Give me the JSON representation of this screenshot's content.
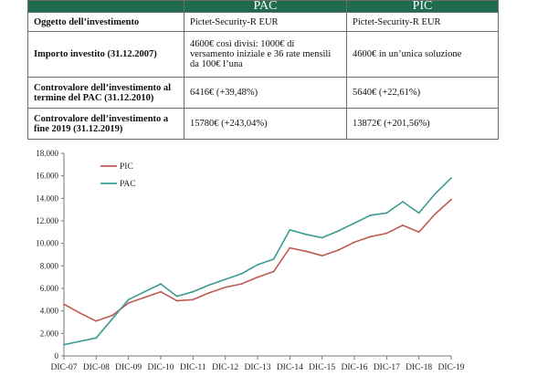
{
  "table": {
    "headers": [
      "",
      "PAC",
      "PIC"
    ],
    "rows": [
      {
        "label": "Oggetto dell’investimento",
        "pac": "Pictet-Security-R EUR",
        "pic": "Pictet-Security-R EUR"
      },
      {
        "label": "Importo investito (31.12.2007)",
        "pac": "4600€ così divisi: 1000€ di versamento iniziale e 36 rate mensili da 100€ l’una",
        "pic": "4600€ in un’unica soluzione"
      },
      {
        "label": "Controvalore dell’investimento al termine del PAC (31.12.2010)",
        "pac": "6416€ (+39,48%)",
        "pic": "5640€ (+22,61%)"
      },
      {
        "label": "Controvalore dell’investimento a fine 2019 (31.12.2019)",
        "pac": "15780€ (+243,04%)",
        "pic": "13872€ (+201,56%)"
      }
    ]
  },
  "chart_data": {
    "type": "line",
    "title": "",
    "xlabel": "",
    "ylabel": "",
    "x_ticks": [
      "DIC-07",
      "DIC-08",
      "DIC-09",
      "DIC-10",
      "DIC-11",
      "DIC-12",
      "DIC-13",
      "DIC-14",
      "DIC-15",
      "DIC-16",
      "DIC-17",
      "DIC-18",
      "DIC-19"
    ],
    "y_ticks": [
      "0",
      "2.000",
      "4.000",
      "6.000",
      "8.000",
      "10.000",
      "12.000",
      "14.000",
      "16.000",
      "18.000"
    ],
    "ylim": [
      0,
      18000
    ],
    "grid": false,
    "legend_position": "top-left",
    "x": [
      "DIC-07",
      "GIU-08",
      "DIC-08",
      "GIU-09",
      "DIC-09",
      "GIU-10",
      "DIC-10",
      "GIU-11",
      "DIC-11",
      "GIU-12",
      "DIC-12",
      "GIU-13",
      "DIC-13",
      "GIU-14",
      "DIC-14",
      "GIU-15",
      "DIC-15",
      "GIU-16",
      "DIC-16",
      "GIU-17",
      "DIC-17",
      "GIU-18",
      "DIC-18",
      "GIU-19",
      "DIC-19"
    ],
    "series": [
      {
        "name": "PIC",
        "color": "#c05a55",
        "values": [
          4600,
          3800,
          3100,
          3600,
          4700,
          5200,
          5700,
          4900,
          5000,
          5600,
          6100,
          6400,
          7000,
          7500,
          9600,
          9300,
          8900,
          9400,
          10100,
          10600,
          10900,
          11600,
          11000,
          12600,
          13900
        ]
      },
      {
        "name": "PAC",
        "color": "#3b9b92",
        "values": [
          1000,
          1300,
          1600,
          3300,
          5000,
          5700,
          6400,
          5300,
          5700,
          6300,
          6800,
          7300,
          8100,
          8600,
          11200,
          10800,
          10500,
          11100,
          11800,
          12500,
          12700,
          13700,
          12700,
          14400,
          15800
        ]
      }
    ]
  }
}
